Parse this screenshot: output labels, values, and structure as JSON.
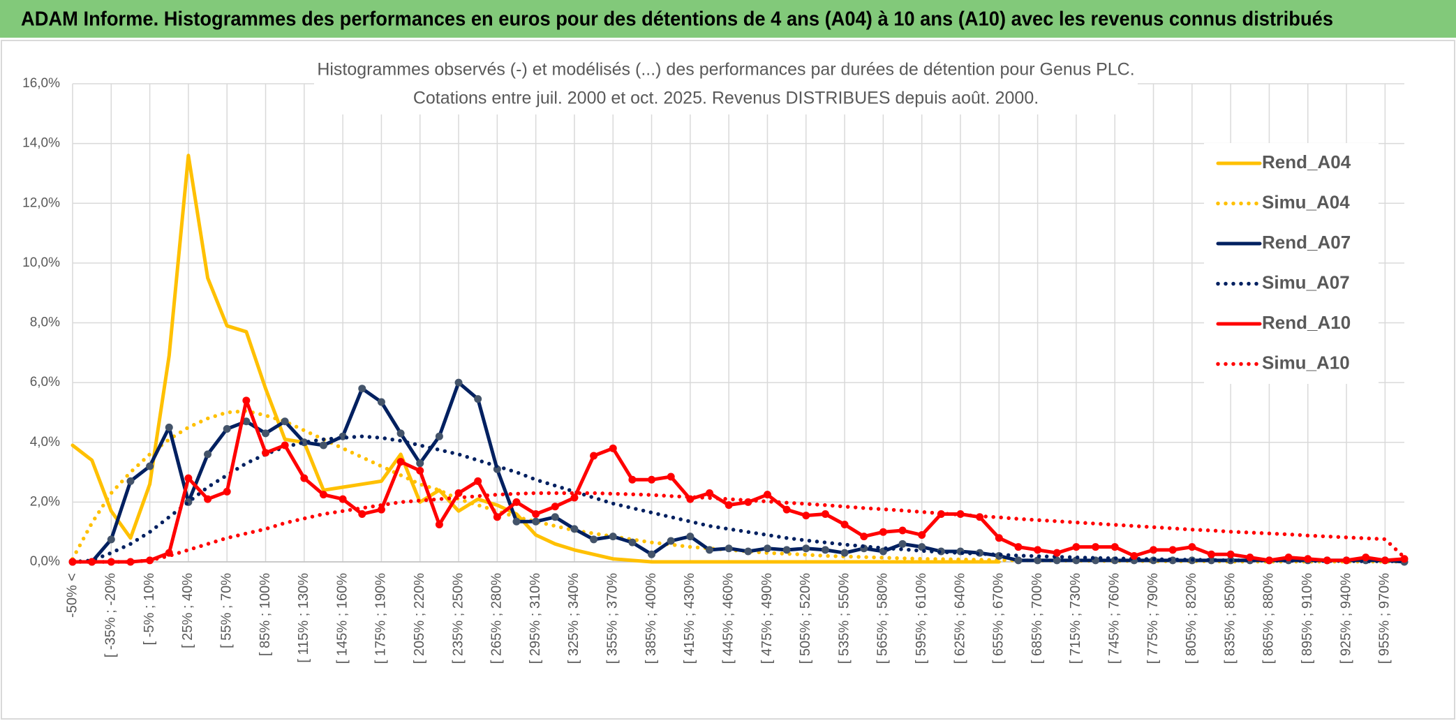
{
  "header": {
    "title": "ADAM Informe. Histogrammes des performances en euros pour des détentions de 4 ans (A04) à 10 ans (A10) avec les revenus connus distribués"
  },
  "chart_data": {
    "type": "line",
    "title": "Histogrammes observés (-) et modélisés (...) des performances par durées de détention pour Genus PLC.",
    "subtitle": "Cotations entre juil. 2000 et oct. 2025. Revenus DISTRIBUES depuis août. 2000.",
    "categories": [
      "-50% <",
      null,
      "[ -35% ; -20%",
      null,
      "[ -5% ; 10%",
      null,
      "[ 25% ; 40%",
      null,
      "[ 55% ; 70%",
      null,
      "[ 85% ; 100%",
      null,
      "[ 115% ; 130%",
      null,
      "[ 145% ; 160%",
      null,
      "[ 175% ; 190%",
      null,
      "[ 205% ; 220%",
      null,
      "[ 235% ; 250%",
      null,
      "[ 265% ; 280%",
      null,
      "[ 295% ; 310%",
      null,
      "[ 325% ; 340%",
      null,
      "[ 355% ; 370%",
      null,
      "[ 385% ; 400%",
      null,
      "[ 415% ; 430%",
      null,
      "[ 445% ; 460%",
      null,
      "[ 475% ; 490%",
      null,
      "[ 505% ; 520%",
      null,
      "[ 535% ; 550%",
      null,
      "[ 565% ; 580%",
      null,
      "[ 595% ; 610%",
      null,
      "[ 625% ; 640%",
      null,
      "[ 655% ; 670%",
      null,
      "[ 685% ; 700%",
      null,
      "[ 715% ; 730%",
      null,
      "[ 745% ; 760%",
      null,
      "[ 775% ; 790%",
      null,
      "[ 805% ; 820%",
      null,
      "[ 835% ; 850%",
      null,
      "[ 865% ; 880%",
      null,
      "[ 895% ; 910%",
      null,
      "[ 925% ; 940%",
      null,
      "[ 955% ; 970%",
      null
    ],
    "series": [
      {
        "name": "Rend_A04",
        "color": "#FFC000",
        "dash": "solid",
        "marker": null,
        "values": [
          3.9,
          3.4,
          1.7,
          0.8,
          2.6,
          6.9,
          13.6,
          9.5,
          7.9,
          7.7,
          5.8,
          4.1,
          4.0,
          2.4,
          2.5,
          2.6,
          2.7,
          3.6,
          2.0,
          2.4,
          1.7,
          2.1,
          1.9,
          1.6,
          0.9,
          0.6,
          0.4,
          0.25,
          0.1,
          0.05,
          0,
          0,
          0,
          0,
          0,
          0,
          0,
          0,
          0,
          0,
          0,
          0,
          0,
          0,
          0,
          0,
          0,
          0,
          0,
          null,
          null,
          null,
          null,
          null,
          null,
          null,
          null,
          null,
          null,
          null,
          null,
          null,
          null,
          null,
          null,
          null,
          null,
          null,
          null,
          null
        ]
      },
      {
        "name": "Simu_A04",
        "color": "#FFC000",
        "dash": "dotted",
        "marker": null,
        "values": [
          0.1,
          1.3,
          2.3,
          3.0,
          3.6,
          4.1,
          4.5,
          4.8,
          5.0,
          5.05,
          4.9,
          4.7,
          4.4,
          4.1,
          3.8,
          3.5,
          3.2,
          2.9,
          2.6,
          2.4,
          2.1,
          1.9,
          1.7,
          1.5,
          1.35,
          1.2,
          1.05,
          0.95,
          0.85,
          0.75,
          0.65,
          0.58,
          0.5,
          0.45,
          0.4,
          0.35,
          0.3,
          0.27,
          0.24,
          0.2,
          0.18,
          0.16,
          0.14,
          0.12,
          0.1,
          0.09,
          0.08,
          0.07,
          0.06,
          0.05,
          0.05,
          0.04,
          0.04,
          0.03,
          0.03,
          0.03,
          0.02,
          0.02,
          0.02,
          0.02,
          0.01,
          0.01,
          0.01,
          0.01,
          0.01,
          0.01,
          0.01,
          0.01,
          0.01,
          0.01
        ]
      },
      {
        "name": "Rend_A07",
        "color": "#002060",
        "dash": "solid",
        "marker": "#44546A",
        "values": [
          0,
          0,
          0.75,
          2.7,
          3.2,
          4.5,
          2.0,
          3.6,
          4.45,
          4.7,
          4.3,
          4.7,
          4.0,
          3.9,
          4.2,
          5.8,
          5.35,
          4.3,
          3.3,
          4.2,
          6.0,
          5.45,
          3.1,
          1.35,
          1.35,
          1.5,
          1.1,
          0.75,
          0.85,
          0.65,
          0.25,
          0.7,
          0.85,
          0.4,
          0.45,
          0.35,
          0.45,
          0.4,
          0.45,
          0.4,
          0.3,
          0.45,
          0.35,
          0.6,
          0.5,
          0.35,
          0.35,
          0.3,
          0.2,
          0.05,
          0.05,
          0.05,
          0.05,
          0.05,
          0.05,
          0.05,
          0.05,
          0.05,
          0.05,
          0.05,
          0.05,
          0.05,
          0.05,
          0.05,
          0.05,
          0.05,
          0.05,
          0.05,
          0.05,
          0
        ]
      },
      {
        "name": "Simu_A07",
        "color": "#002060",
        "dash": "dotted",
        "marker": null,
        "values": [
          0,
          0.05,
          0.3,
          0.6,
          1.0,
          1.5,
          2.0,
          2.5,
          2.9,
          3.3,
          3.6,
          3.85,
          4.0,
          4.1,
          4.15,
          4.2,
          4.15,
          4.05,
          3.9,
          3.75,
          3.6,
          3.4,
          3.2,
          3.0,
          2.75,
          2.55,
          2.35,
          2.15,
          1.95,
          1.8,
          1.65,
          1.5,
          1.35,
          1.2,
          1.1,
          1.0,
          0.9,
          0.8,
          0.72,
          0.65,
          0.58,
          0.52,
          0.46,
          0.42,
          0.37,
          0.33,
          0.3,
          0.27,
          0.24,
          0.21,
          0.19,
          0.17,
          0.15,
          0.13,
          0.12,
          0.1,
          0.09,
          0.08,
          0.07,
          0.06,
          0.05,
          0.05,
          0.04,
          0.04,
          0.03,
          0.03,
          0.03,
          0.02,
          0.02,
          0.02
        ]
      },
      {
        "name": "Rend_A10",
        "color": "#FF0000",
        "dash": "solid",
        "marker": "#FF0000",
        "values": [
          0,
          0,
          0,
          0,
          0.05,
          0.3,
          2.8,
          2.1,
          2.35,
          5.4,
          3.65,
          3.9,
          2.8,
          2.25,
          2.1,
          1.6,
          1.75,
          3.35,
          3.05,
          1.25,
          2.3,
          2.7,
          1.5,
          2.0,
          1.6,
          1.85,
          2.15,
          3.55,
          3.8,
          2.75,
          2.75,
          2.85,
          2.1,
          2.3,
          1.9,
          2.0,
          2.25,
          1.75,
          1.55,
          1.6,
          1.25,
          0.85,
          1.0,
          1.05,
          0.9,
          1.6,
          1.6,
          1.5,
          0.8,
          0.5,
          0.4,
          0.3,
          0.5,
          0.5,
          0.5,
          0.2,
          0.4,
          0.4,
          0.5,
          0.25,
          0.25,
          0.15,
          0.05,
          0.15,
          0.1,
          0.05,
          0.05,
          0.15,
          0.05,
          0.1
        ]
      },
      {
        "name": "Simu_A10",
        "color": "#FF0000",
        "dash": "dotted",
        "marker": null,
        "values": [
          0,
          0,
          0,
          0,
          0.05,
          0.2,
          0.4,
          0.6,
          0.8,
          0.95,
          1.1,
          1.3,
          1.45,
          1.6,
          1.7,
          1.8,
          1.9,
          2.0,
          2.05,
          2.1,
          2.15,
          2.2,
          2.25,
          2.28,
          2.3,
          2.3,
          2.3,
          2.3,
          2.28,
          2.26,
          2.24,
          2.2,
          2.17,
          2.14,
          2.1,
          2.06,
          2.02,
          1.98,
          1.94,
          1.9,
          1.85,
          1.8,
          1.76,
          1.72,
          1.67,
          1.62,
          1.58,
          1.53,
          1.49,
          1.44,
          1.4,
          1.36,
          1.32,
          1.28,
          1.24,
          1.2,
          1.16,
          1.12,
          1.08,
          1.05,
          1.01,
          0.98,
          0.95,
          0.92,
          0.88,
          0.85,
          0.82,
          0.79,
          0.76,
          0.15
        ]
      }
    ],
    "ylim": [
      0,
      16
    ],
    "yticks": [
      {
        "value": 0,
        "label": "0,0%"
      },
      {
        "value": 2,
        "label": "2,0%"
      },
      {
        "value": 4,
        "label": "4,0%"
      },
      {
        "value": 6,
        "label": "6,0%"
      },
      {
        "value": 8,
        "label": "8,0%"
      },
      {
        "value": 10,
        "label": "10,0%"
      },
      {
        "value": 12,
        "label": "12,0%"
      },
      {
        "value": 14,
        "label": "14,0%"
      },
      {
        "value": 16,
        "label": "16,0%"
      }
    ],
    "grid": true,
    "legend": "right"
  }
}
